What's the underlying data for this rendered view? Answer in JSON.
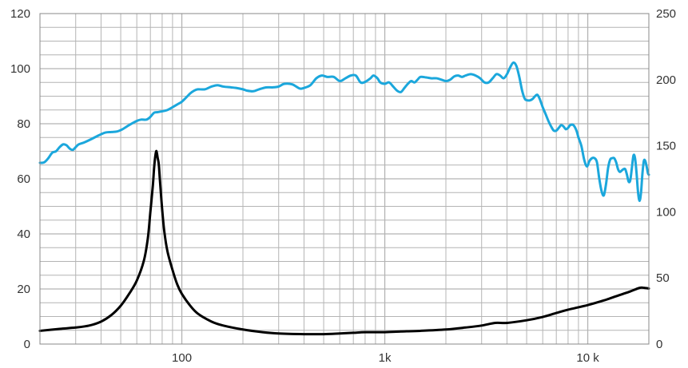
{
  "chart_data": {
    "type": "line",
    "title": "",
    "xlabel": "",
    "ylabel": "",
    "xscale": "log",
    "xlim": [
      20,
      20000
    ],
    "ylim_left": [
      0,
      120
    ],
    "ylim_right": [
      0,
      250
    ],
    "grid": true,
    "legend": "none",
    "x_tick_labels": [
      {
        "value": 100,
        "label": "100"
      },
      {
        "value": 1000,
        "label": "1k"
      },
      {
        "value": 10000,
        "label": "10 k"
      }
    ],
    "y_left_tick_labels": [
      "0",
      "20",
      "40",
      "60",
      "80",
      "100",
      "120"
    ],
    "y_right_tick_labels": [
      "0",
      "50",
      "100",
      "150",
      "200",
      "250"
    ],
    "colors": {
      "frequency_response": "#1ba7dc",
      "impedance": "#000000",
      "grid": "#b4b4b4",
      "axis": "#888888"
    },
    "series": [
      {
        "axis": "left",
        "color": "#1ba7dc",
        "points": [
          [
            20,
            65.8
          ],
          [
            21,
            66
          ],
          [
            22,
            67.5
          ],
          [
            23,
            69.5
          ],
          [
            24,
            70
          ],
          [
            25,
            71.5
          ],
          [
            26,
            72.5
          ],
          [
            27,
            72.2
          ],
          [
            28,
            71
          ],
          [
            29,
            70.5
          ],
          [
            30,
            71.5
          ],
          [
            31,
            72.5
          ],
          [
            33,
            73.2
          ],
          [
            36,
            74.5
          ],
          [
            39,
            75.8
          ],
          [
            42,
            76.8
          ],
          [
            45,
            77
          ],
          [
            48,
            77.2
          ],
          [
            51,
            78
          ],
          [
            55,
            79.5
          ],
          [
            60,
            81
          ],
          [
            63,
            81.5
          ],
          [
            67,
            81.5
          ],
          [
            70,
            82.5
          ],
          [
            73,
            84
          ],
          [
            76,
            84.2
          ],
          [
            80,
            84.5
          ],
          [
            85,
            85
          ],
          [
            90,
            86
          ],
          [
            95,
            87
          ],
          [
            100,
            88
          ],
          [
            105,
            89.5
          ],
          [
            110,
            91
          ],
          [
            115,
            92
          ],
          [
            120,
            92.5
          ],
          [
            130,
            92.5
          ],
          [
            140,
            93.5
          ],
          [
            150,
            94
          ],
          [
            160,
            93.5
          ],
          [
            175,
            93.2
          ],
          [
            185,
            93
          ],
          [
            200,
            92.5
          ],
          [
            210,
            92
          ],
          [
            225,
            91.8
          ],
          [
            240,
            92.5
          ],
          [
            260,
            93.2
          ],
          [
            280,
            93.2
          ],
          [
            300,
            93.5
          ],
          [
            320,
            94.5
          ],
          [
            350,
            94.3
          ],
          [
            380,
            92.8
          ],
          [
            400,
            93
          ],
          [
            430,
            94
          ],
          [
            460,
            96.5
          ],
          [
            490,
            97.5
          ],
          [
            520,
            97
          ],
          [
            560,
            97
          ],
          [
            600,
            95.5
          ],
          [
            640,
            96.5
          ],
          [
            680,
            97.5
          ],
          [
            720,
            97.5
          ],
          [
            760,
            95
          ],
          [
            800,
            95.2
          ],
          [
            850,
            96.5
          ],
          [
            880,
            97.5
          ],
          [
            920,
            96.5
          ],
          [
            950,
            95
          ],
          [
            1000,
            94.5
          ],
          [
            1050,
            95
          ],
          [
            1100,
            93.5
          ],
          [
            1150,
            92
          ],
          [
            1200,
            91.5
          ],
          [
            1250,
            93
          ],
          [
            1300,
            94.5
          ],
          [
            1350,
            95.5
          ],
          [
            1400,
            95
          ],
          [
            1450,
            96
          ],
          [
            1500,
            97
          ],
          [
            1600,
            96.8
          ],
          [
            1700,
            96.5
          ],
          [
            1800,
            96.5
          ],
          [
            1900,
            96
          ],
          [
            2000,
            95.5
          ],
          [
            2100,
            96
          ],
          [
            2200,
            97.2
          ],
          [
            2300,
            97.5
          ],
          [
            2400,
            97
          ],
          [
            2500,
            97.5
          ],
          [
            2650,
            98
          ],
          [
            2800,
            97.5
          ],
          [
            2950,
            96.5
          ],
          [
            3100,
            95
          ],
          [
            3250,
            95
          ],
          [
            3400,
            96.5
          ],
          [
            3550,
            98
          ],
          [
            3700,
            97.5
          ],
          [
            3850,
            96.5
          ],
          [
            4000,
            98
          ],
          [
            4150,
            100.5
          ],
          [
            4300,
            102.2
          ],
          [
            4450,
            101
          ],
          [
            4600,
            97
          ],
          [
            4750,
            92
          ],
          [
            4900,
            89
          ],
          [
            5050,
            88.5
          ],
          [
            5200,
            88.5
          ],
          [
            5350,
            89
          ],
          [
            5500,
            90
          ],
          [
            5650,
            90.5
          ],
          [
            5800,
            89
          ],
          [
            6000,
            86
          ],
          [
            6200,
            83.5
          ],
          [
            6400,
            81
          ],
          [
            6600,
            79
          ],
          [
            6800,
            77.5
          ],
          [
            7000,
            77.5
          ],
          [
            7200,
            78.5
          ],
          [
            7400,
            79.5
          ],
          [
            7600,
            79
          ],
          [
            7800,
            78
          ],
          [
            8000,
            78.5
          ],
          [
            8200,
            79.5
          ],
          [
            8500,
            79.5
          ],
          [
            8800,
            77.5
          ],
          [
            9000,
            75
          ],
          [
            9300,
            72
          ],
          [
            9600,
            67
          ],
          [
            9900,
            64.5
          ],
          [
            10200,
            66.5
          ],
          [
            10500,
            67.5
          ],
          [
            10800,
            67.5
          ],
          [
            11100,
            66
          ],
          [
            11400,
            60
          ],
          [
            11700,
            55.5
          ],
          [
            12000,
            54
          ],
          [
            12300,
            58
          ],
          [
            12600,
            64
          ],
          [
            12900,
            67
          ],
          [
            13200,
            67.5
          ],
          [
            13500,
            67.5
          ],
          [
            13800,
            66
          ],
          [
            14100,
            63.5
          ],
          [
            14400,
            62.5
          ],
          [
            14700,
            63
          ],
          [
            15000,
            63.5
          ],
          [
            15300,
            63.5
          ],
          [
            15600,
            61.5
          ],
          [
            15900,
            59
          ],
          [
            16200,
            59.5
          ],
          [
            16500,
            64
          ],
          [
            16800,
            68.5
          ],
          [
            17100,
            67.5
          ],
          [
            17400,
            62
          ],
          [
            17700,
            55
          ],
          [
            18000,
            52
          ],
          [
            18300,
            55
          ],
          [
            18600,
            62
          ],
          [
            18900,
            66.5
          ],
          [
            19200,
            66.5
          ],
          [
            19500,
            64.5
          ],
          [
            19800,
            62
          ],
          [
            20000,
            61.5
          ]
        ]
      },
      {
        "axis": "right",
        "color": "#000000",
        "points": [
          [
            20,
            10
          ],
          [
            25,
            11.5
          ],
          [
            30,
            12.5
          ],
          [
            35,
            14
          ],
          [
            40,
            17
          ],
          [
            45,
            22
          ],
          [
            50,
            29
          ],
          [
            55,
            38
          ],
          [
            60,
            48
          ],
          [
            65,
            63
          ],
          [
            68,
            80
          ],
          [
            70,
            100
          ],
          [
            72,
            120
          ],
          [
            73,
            133
          ],
          [
            74,
            142
          ],
          [
            75,
            146
          ],
          [
            76,
            141
          ],
          [
            77,
            136
          ],
          [
            78,
            124
          ],
          [
            80,
            102
          ],
          [
            82,
            85
          ],
          [
            85,
            70
          ],
          [
            90,
            56
          ],
          [
            95,
            45
          ],
          [
            100,
            38
          ],
          [
            110,
            29
          ],
          [
            120,
            23
          ],
          [
            140,
            17
          ],
          [
            160,
            14
          ],
          [
            200,
            11
          ],
          [
            250,
            9
          ],
          [
            300,
            8
          ],
          [
            400,
            7.5
          ],
          [
            500,
            7.5
          ],
          [
            600,
            8
          ],
          [
            700,
            8.5
          ],
          [
            800,
            9
          ],
          [
            1000,
            9
          ],
          [
            1200,
            9.5
          ],
          [
            1500,
            10
          ],
          [
            2000,
            11
          ],
          [
            2500,
            12.5
          ],
          [
            3000,
            14
          ],
          [
            3500,
            16
          ],
          [
            4000,
            16
          ],
          [
            5000,
            18
          ],
          [
            6000,
            20.5
          ],
          [
            7000,
            23.5
          ],
          [
            8000,
            26
          ],
          [
            10000,
            29.5
          ],
          [
            12000,
            33
          ],
          [
            14000,
            36.5
          ],
          [
            16000,
            39.5
          ],
          [
            18000,
            42.5
          ],
          [
            19000,
            42.5
          ],
          [
            20000,
            42
          ]
        ]
      }
    ]
  }
}
